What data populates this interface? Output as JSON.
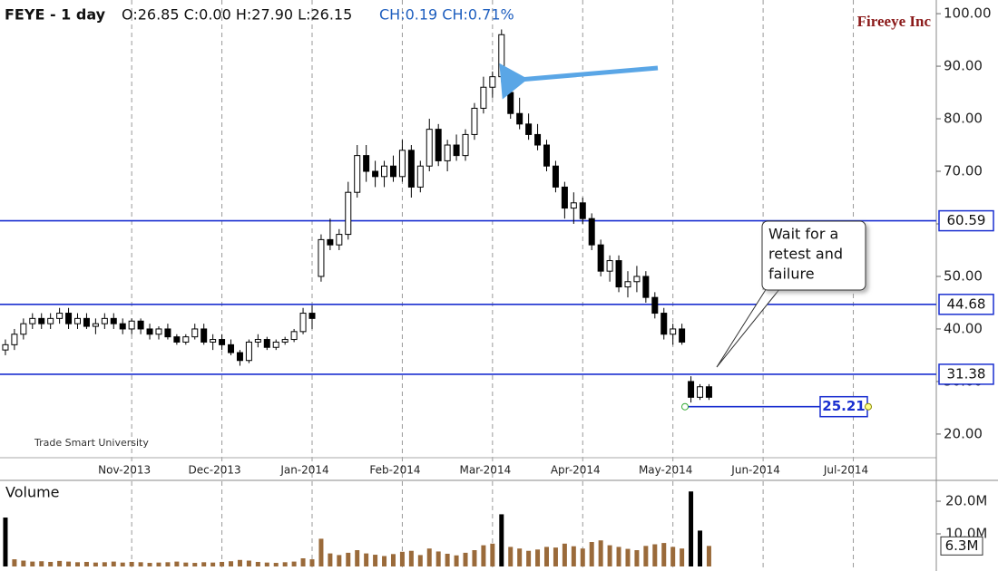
{
  "chart_data": [
    {
      "type": "candlestick",
      "title": "FEYE - 1 day",
      "ohlc_text": "O:26.85 C:0.00 H:27.90 L:26.15",
      "change_text": "CH:0.19 CH:0.71%",
      "name": "Fireeye Inc",
      "watermark": "Trade Smart University",
      "callout": [
        "Wait for a",
        "retest and",
        "failure"
      ],
      "x": [
        9.6,
        9.7,
        9.8,
        9.9,
        10.0,
        10.1,
        10.2,
        10.3,
        10.4,
        10.5,
        10.6,
        10.7,
        10.8,
        10.9,
        11.0,
        11.1,
        11.2,
        11.3,
        11.4,
        11.5,
        11.6,
        11.7,
        11.8,
        11.9,
        12.0,
        12.1,
        12.2,
        12.3,
        12.4,
        12.5,
        12.6,
        12.7,
        12.8,
        12.9,
        13.0,
        13.1,
        13.2,
        13.3,
        13.4,
        13.5,
        13.6,
        13.7,
        13.8,
        13.9,
        14.0,
        14.1,
        14.2,
        14.3,
        14.4,
        14.5,
        14.6,
        14.7,
        14.8,
        14.9,
        15.0,
        15.1,
        15.2,
        15.3,
        15.4,
        15.5,
        15.6,
        15.7,
        15.8,
        15.9,
        16.0,
        16.1,
        16.2,
        16.3,
        16.4,
        16.5,
        16.6,
        16.7,
        16.8,
        16.9,
        17.0,
        17.1,
        17.2,
        17.3,
        17.4
      ],
      "open": [
        36,
        37,
        39,
        41,
        42,
        41,
        42,
        43,
        41,
        42,
        40.5,
        41,
        42,
        41,
        40,
        41.5,
        40,
        39,
        40,
        38.5,
        37.5,
        38.5,
        40,
        37.5,
        38,
        37,
        35.5,
        34,
        37.5,
        38,
        36.5,
        37.5,
        38,
        39.5,
        43,
        50,
        57,
        56,
        58,
        66,
        73,
        70,
        69,
        71,
        69,
        74,
        67,
        71,
        78,
        72,
        75,
        73,
        77,
        82,
        86,
        88,
        85,
        81,
        79,
        77,
        75,
        71,
        67,
        63,
        64,
        61,
        56,
        51,
        53,
        48,
        49,
        50,
        46,
        43,
        39,
        40,
        30,
        27,
        29
      ],
      "high": [
        38,
        40,
        42,
        43,
        43,
        43,
        44,
        44,
        43,
        43,
        42,
        43,
        43,
        42,
        42,
        42,
        41,
        40.5,
        41,
        39,
        39,
        41,
        41,
        39,
        39,
        38,
        36,
        38,
        39,
        38.5,
        38,
        38.5,
        40,
        44,
        44.5,
        58,
        61,
        59,
        68,
        75,
        75,
        72,
        72,
        73,
        76,
        75,
        72,
        80,
        79,
        76,
        77,
        78,
        83,
        88,
        89,
        97,
        86,
        84,
        81,
        79,
        76,
        72,
        68,
        66,
        65,
        62,
        57,
        54,
        54,
        51,
        52,
        51,
        47,
        44,
        41,
        41,
        31,
        29.5,
        29.5
      ],
      "low": [
        35,
        36,
        38,
        40,
        40,
        40,
        41,
        40,
        40,
        40,
        39,
        40,
        40,
        39,
        39,
        39,
        38,
        38,
        38,
        37,
        37,
        38,
        37,
        36,
        36,
        35,
        33,
        33.5,
        36.5,
        36,
        36,
        37,
        37.5,
        39,
        40,
        49,
        55,
        55,
        57,
        65,
        68,
        67,
        67,
        68,
        68,
        65,
        66,
        70,
        71,
        70,
        72,
        72,
        76,
        81,
        84,
        87,
        80,
        78,
        76,
        74,
        70,
        66,
        61,
        60,
        60,
        55,
        50,
        49,
        47,
        46,
        47,
        45,
        42,
        38,
        37,
        37,
        26,
        26.5,
        26.5
      ],
      "close": [
        37,
        39,
        41,
        42,
        41,
        42,
        43,
        41,
        42,
        40.5,
        41,
        42,
        41,
        40,
        41.5,
        40,
        39,
        40,
        38.5,
        37.5,
        38.5,
        40,
        37.5,
        38,
        37,
        35.5,
        34,
        37.5,
        38,
        36.5,
        37.5,
        38,
        39.5,
        43,
        42,
        57,
        56,
        58,
        66,
        73,
        70,
        69,
        71,
        69,
        74,
        67,
        71,
        78,
        72,
        75,
        73,
        77,
        82,
        86,
        88,
        96,
        81,
        79,
        77,
        75,
        71,
        67,
        63,
        64,
        61,
        56,
        51,
        53,
        48,
        49,
        50,
        46,
        43,
        39,
        40,
        37.5,
        27,
        29,
        27
      ],
      "xlim": [
        9.54,
        19.92
      ],
      "xticks": [
        {
          "value": 11,
          "label": "Nov-2013"
        },
        {
          "value": 12,
          "label": "Dec-2013"
        },
        {
          "value": 13,
          "label": "Jan-2014"
        },
        {
          "value": 14,
          "label": "Feb-2014"
        },
        {
          "value": 15,
          "label": "Mar-2014"
        },
        {
          "value": 16,
          "label": "Apr-2014"
        },
        {
          "value": 17,
          "label": "May-2014"
        },
        {
          "value": 18,
          "label": "Jun-2014"
        },
        {
          "value": 19,
          "label": "Jul-2014"
        }
      ],
      "ylim": [
        15.5,
        102.6
      ],
      "yticks": [
        {
          "value": 20,
          "label": "20.00"
        },
        {
          "value": 30,
          "label": "30.00"
        },
        {
          "value": 40,
          "label": "40.00"
        },
        {
          "value": 50,
          "label": "50.00"
        },
        {
          "value": 60,
          "label": "60.00"
        },
        {
          "value": 70,
          "label": "70.00"
        },
        {
          "value": 80,
          "label": "80.00"
        },
        {
          "value": 90,
          "label": "90.00"
        },
        {
          "value": 100,
          "label": "100.00"
        }
      ],
      "levels": [
        {
          "value": 60.59,
          "label": "60.59"
        },
        {
          "value": 44.68,
          "label": "44.68"
        },
        {
          "value": 31.38,
          "label": "31.38"
        }
      ],
      "target": {
        "value": 25.21,
        "label": "25.21"
      },
      "up_color": "#ffffff",
      "down_color": "#000000",
      "level_color": "#1a2fd0"
    },
    {
      "type": "bar",
      "title": "Volume",
      "x": [
        9.6,
        9.7,
        9.8,
        9.9,
        10.0,
        10.1,
        10.2,
        10.3,
        10.4,
        10.5,
        10.6,
        10.7,
        10.8,
        10.9,
        11.0,
        11.1,
        11.2,
        11.3,
        11.4,
        11.5,
        11.6,
        11.7,
        11.8,
        11.9,
        12.0,
        12.1,
        12.2,
        12.3,
        12.4,
        12.5,
        12.6,
        12.7,
        12.8,
        12.9,
        13.0,
        13.1,
        13.2,
        13.3,
        13.4,
        13.5,
        13.6,
        13.7,
        13.8,
        13.9,
        14.0,
        14.1,
        14.2,
        14.3,
        14.4,
        14.5,
        14.6,
        14.7,
        14.8,
        14.9,
        15.0,
        15.1,
        15.2,
        15.3,
        15.4,
        15.5,
        15.6,
        15.7,
        15.8,
        15.9,
        16.0,
        16.1,
        16.2,
        16.3,
        16.4,
        16.5,
        16.6,
        16.7,
        16.8,
        16.9,
        17.0,
        17.1,
        17.2,
        17.3,
        17.4
      ],
      "values": [
        15,
        2.2,
        1.8,
        1.5,
        1.6,
        1.4,
        1.7,
        1.5,
        1.3,
        1.4,
        1.2,
        1.3,
        1.5,
        1.2,
        1.4,
        1.3,
        1.1,
        1.2,
        1.3,
        1.5,
        1.2,
        1.1,
        1.3,
        1.2,
        1.4,
        1.6,
        2,
        1.8,
        1.4,
        1.2,
        1.1,
        1.3,
        1.5,
        2.5,
        2.2,
        8.5,
        4,
        3.5,
        4.2,
        5,
        4,
        3.6,
        3.2,
        3.8,
        4.5,
        4.8,
        3.5,
        5.5,
        4.6,
        3.9,
        3.4,
        4.2,
        5,
        6.5,
        7,
        16,
        6,
        5.5,
        4.8,
        5.2,
        6,
        5.8,
        7,
        6.2,
        5.5,
        7.5,
        8,
        6.5,
        6,
        5.4,
        5,
        6.3,
        6.8,
        7.2,
        6,
        5.5,
        23,
        11,
        6.3
      ],
      "xlim": [
        9.54,
        19.92
      ],
      "ylim": [
        0,
        26.4
      ],
      "yticks": [
        {
          "value": 10,
          "label": "10.0M"
        },
        {
          "value": 20,
          "label": "20.0M"
        }
      ],
      "last": {
        "value": 6.3,
        "label": "6.3M"
      },
      "color": "#9a6a3a"
    }
  ]
}
